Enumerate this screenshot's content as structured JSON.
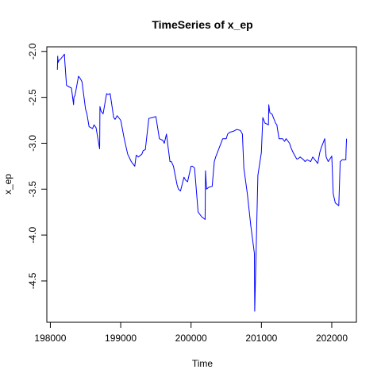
{
  "chart_data": {
    "type": "line",
    "title": "TimeSeries of  x_ep",
    "xlabel": "Time",
    "ylabel": "x_ep",
    "xlim": [
      197950,
      202350
    ],
    "ylim": [
      -4.95,
      -1.95
    ],
    "xticks": [
      198000,
      199000,
      200000,
      201000,
      202000
    ],
    "yticks": [
      -2.0,
      -2.5,
      -3.0,
      -3.5,
      -4.0,
      -4.5
    ],
    "grid": false,
    "series": [
      {
        "color": "#0000ff",
        "x": [
          198100,
          198105,
          198110,
          198120,
          198150,
          198200,
          198205,
          198230,
          198300,
          198330,
          198335,
          198350,
          198400,
          198410,
          198430,
          198450,
          198500,
          198520,
          198550,
          198600,
          198620,
          198650,
          198700,
          198702,
          198705,
          198720,
          198750,
          198800,
          198820,
          198850,
          198900,
          198920,
          198950,
          199000,
          199050,
          199100,
          199150,
          199200,
          199220,
          199250,
          199300,
          199320,
          199350,
          199400,
          199450,
          199500,
          199550,
          199600,
          199620,
          199650,
          199700,
          199720,
          199750,
          199800,
          199820,
          199850,
          199900,
          199920,
          199950,
          200000,
          200020,
          200050,
          200100,
          200150,
          200200,
          200205,
          200220,
          200250,
          200300,
          200330,
          200350,
          200400,
          200450,
          200500,
          200520,
          200550,
          200600,
          200650,
          200700,
          200730,
          200750,
          200800,
          200850,
          200900,
          200905,
          200950,
          201000,
          201020,
          201050,
          201100,
          201105,
          201120,
          201150,
          201200,
          201220,
          201250,
          201300,
          201330,
          201350,
          201400,
          201420,
          201450,
          201500,
          201520,
          201550,
          201600,
          201620,
          201650,
          201700,
          201730,
          201750,
          201800,
          201830,
          201850,
          201900,
          201920,
          201950,
          202000,
          202020,
          202050,
          202100,
          202120,
          202150,
          202200,
          202205,
          202210
        ],
        "y": [
          -2.2,
          -2.05,
          -2.12,
          -2.1,
          -2.08,
          -2.03,
          -2.1,
          -2.37,
          -2.4,
          -2.58,
          -2.5,
          -2.48,
          -2.27,
          -2.28,
          -2.3,
          -2.33,
          -2.63,
          -2.68,
          -2.82,
          -2.84,
          -2.8,
          -2.83,
          -3.06,
          -2.9,
          -2.6,
          -2.65,
          -2.68,
          -2.46,
          -2.47,
          -2.46,
          -2.72,
          -2.74,
          -2.7,
          -2.75,
          -2.95,
          -3.12,
          -3.2,
          -3.25,
          -3.13,
          -3.15,
          -3.12,
          -3.08,
          -3.07,
          -2.73,
          -2.72,
          -2.71,
          -2.95,
          -2.97,
          -3.0,
          -2.9,
          -3.2,
          -3.2,
          -3.25,
          -3.45,
          -3.5,
          -3.52,
          -3.37,
          -3.4,
          -3.42,
          -3.25,
          -3.25,
          -3.27,
          -3.75,
          -3.8,
          -3.83,
          -3.3,
          -3.5,
          -3.48,
          -3.47,
          -3.2,
          -3.15,
          -3.05,
          -2.95,
          -2.95,
          -2.9,
          -2.88,
          -2.87,
          -2.85,
          -2.86,
          -2.9,
          -3.27,
          -3.55,
          -3.9,
          -4.2,
          -4.83,
          -3.35,
          -3.1,
          -2.72,
          -2.78,
          -2.8,
          -2.58,
          -2.67,
          -2.68,
          -2.78,
          -2.8,
          -2.95,
          -2.95,
          -2.98,
          -2.95,
          -3.0,
          -3.05,
          -3.1,
          -3.17,
          -3.17,
          -3.15,
          -3.18,
          -3.2,
          -3.18,
          -3.2,
          -3.15,
          -3.17,
          -3.22,
          -3.1,
          -3.05,
          -2.95,
          -3.15,
          -3.2,
          -3.14,
          -3.55,
          -3.65,
          -3.68,
          -3.2,
          -3.18,
          -3.18,
          -3.05,
          -2.95
        ]
      }
    ]
  }
}
